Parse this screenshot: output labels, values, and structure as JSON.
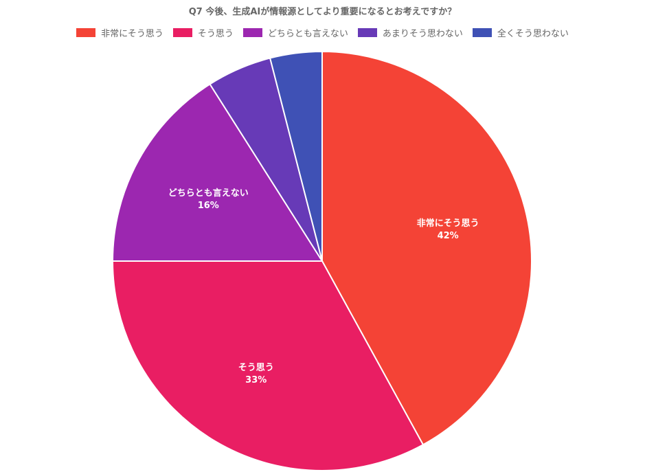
{
  "chart_data": {
    "type": "pie",
    "title": "Q7 今後、生成AIが情報源としてより重要になるとお考えですか？",
    "legend_position": "top",
    "categories": [
      "非常にそう思う",
      "そう思う",
      "どちらとも言えない",
      "あまりそう思わない",
      "全くそう思わない"
    ],
    "values": [
      42,
      33,
      16,
      5,
      4
    ],
    "value_labels": [
      "42%",
      "33%",
      "16%",
      "",
      ""
    ],
    "colors": [
      "#f44336",
      "#e91e63",
      "#9c27b0",
      "#673ab7",
      "#3f51b5"
    ]
  }
}
